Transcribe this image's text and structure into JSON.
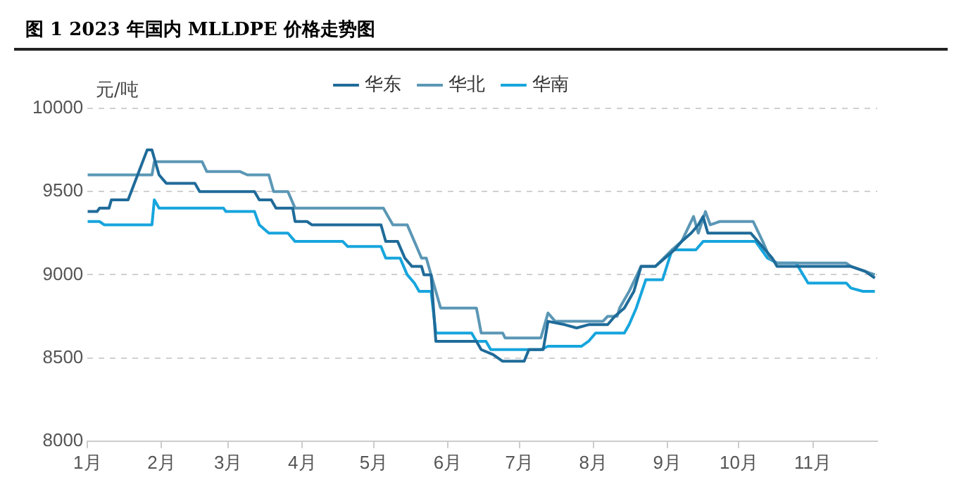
{
  "chart_data": {
    "type": "line",
    "title": "图 1 2023 年国内 MLLDPE 价格走势图",
    "ylabel": "元/吨",
    "xlim": [
      "2023-01-01",
      "2023-11-28"
    ],
    "xticks": [
      {
        "value": "2023-01-01",
        "label": "1月"
      },
      {
        "value": "2023-02-01",
        "label": "2月"
      },
      {
        "value": "2023-03-01",
        "label": "3月"
      },
      {
        "value": "2023-04-01",
        "label": "4月"
      },
      {
        "value": "2023-05-01",
        "label": "5月"
      },
      {
        "value": "2023-06-01",
        "label": "6月"
      },
      {
        "value": "2023-07-01",
        "label": "7月"
      },
      {
        "value": "2023-08-01",
        "label": "8月"
      },
      {
        "value": "2023-09-01",
        "label": "9月"
      },
      {
        "value": "2023-10-01",
        "label": "10月"
      },
      {
        "value": "2023-11-01",
        "label": "11月"
      }
    ],
    "ylim": [
      8000,
      10000
    ],
    "yticks": [
      8000,
      8500,
      9000,
      9500,
      10000
    ],
    "grid": "y",
    "legend": "top",
    "marker": "none",
    "line_style": "solid",
    "series": [
      {
        "name": "华东",
        "color": "#1f6b99",
        "x": [
          "2023-01-01",
          "2023-01-05",
          "2023-01-06",
          "2023-01-10",
          "2023-01-11",
          "2023-01-18",
          "2023-01-26",
          "2023-01-28",
          "2023-01-31",
          "2023-02-03",
          "2023-02-15",
          "2023-02-17",
          "2023-03-12",
          "2023-03-14",
          "2023-03-19",
          "2023-03-21",
          "2023-03-28",
          "2023-03-29",
          "2023-04-03",
          "2023-04-05",
          "2023-05-04",
          "2023-05-06",
          "2023-05-11",
          "2023-05-14",
          "2023-05-17",
          "2023-05-21",
          "2023-05-22",
          "2023-05-25",
          "2023-05-27",
          "2023-06-13",
          "2023-06-15",
          "2023-06-20",
          "2023-06-24",
          "2023-07-03",
          "2023-07-05",
          "2023-07-11",
          "2023-07-13",
          "2023-07-20",
          "2023-07-25",
          "2023-07-30",
          "2023-08-07",
          "2023-08-10",
          "2023-08-14",
          "2023-08-18",
          "2023-08-21",
          "2023-08-27",
          "2023-08-31",
          "2023-09-04",
          "2023-09-07",
          "2023-09-11",
          "2023-09-14",
          "2023-09-16",
          "2023-09-18",
          "2023-10-06",
          "2023-10-09",
          "2023-10-15",
          "2023-10-17",
          "2023-11-17",
          "2023-11-23",
          "2023-11-27"
        ],
        "values": [
          9380,
          9380,
          9400,
          9400,
          9450,
          9450,
          9750,
          9750,
          9600,
          9550,
          9550,
          9500,
          9500,
          9450,
          9450,
          9400,
          9400,
          9320,
          9320,
          9300,
          9300,
          9200,
          9200,
          9100,
          9050,
          9050,
          9000,
          9000,
          8600,
          8600,
          8550,
          8520,
          8480,
          8480,
          8550,
          8550,
          8720,
          8700,
          8680,
          8700,
          8700,
          8750,
          8800,
          8900,
          9050,
          9050,
          9100,
          9150,
          9200,
          9250,
          9300,
          9350,
          9250,
          9250,
          9200,
          9100,
          9050,
          9050,
          9020,
          8980
        ]
      },
      {
        "name": "华北",
        "color": "#5b97b5",
        "x": [
          "2023-01-01",
          "2023-01-28",
          "2023-01-29",
          "2023-02-18",
          "2023-02-20",
          "2023-03-06",
          "2023-03-09",
          "2023-03-18",
          "2023-03-20",
          "2023-03-26",
          "2023-03-29",
          "2023-05-05",
          "2023-05-07",
          "2023-05-09",
          "2023-05-15",
          "2023-05-18",
          "2023-05-21",
          "2023-05-23",
          "2023-05-25",
          "2023-05-29",
          "2023-06-13",
          "2023-06-15",
          "2023-06-24",
          "2023-06-25",
          "2023-07-10",
          "2023-07-13",
          "2023-07-16",
          "2023-08-05",
          "2023-08-07",
          "2023-08-11",
          "2023-08-12",
          "2023-08-16",
          "2023-08-21",
          "2023-08-27",
          "2023-09-03",
          "2023-09-07",
          "2023-09-12",
          "2023-09-14",
          "2023-09-17",
          "2023-09-19",
          "2023-09-23",
          "2023-10-07",
          "2023-10-11",
          "2023-10-14",
          "2023-10-17",
          "2023-11-15",
          "2023-11-17",
          "2023-11-27"
        ],
        "values": [
          9600,
          9600,
          9680,
          9680,
          9620,
          9620,
          9600,
          9600,
          9500,
          9500,
          9400,
          9400,
          9350,
          9300,
          9300,
          9200,
          9100,
          9100,
          9000,
          8800,
          8800,
          8650,
          8650,
          8620,
          8620,
          8770,
          8720,
          8720,
          8750,
          8750,
          8800,
          8900,
          9050,
          9050,
          9150,
          9200,
          9350,
          9250,
          9380,
          9300,
          9320,
          9320,
          9200,
          9100,
          9070,
          9070,
          9050,
          9000
        ]
      },
      {
        "name": "华南",
        "color": "#17a5dd",
        "x": [
          "2023-01-01",
          "2023-01-06",
          "2023-01-08",
          "2023-01-28",
          "2023-01-29",
          "2023-01-31",
          "2023-02-27",
          "2023-02-28",
          "2023-03-12",
          "2023-03-14",
          "2023-03-18",
          "2023-03-26",
          "2023-03-29",
          "2023-04-18",
          "2023-04-20",
          "2023-05-04",
          "2023-05-06",
          "2023-05-12",
          "2023-05-15",
          "2023-05-18",
          "2023-05-20",
          "2023-05-25",
          "2023-05-27",
          "2023-06-11",
          "2023-06-13",
          "2023-06-17",
          "2023-06-19",
          "2023-07-10",
          "2023-07-13",
          "2023-07-27",
          "2023-07-30",
          "2023-08-02",
          "2023-08-14",
          "2023-08-16",
          "2023-08-19",
          "2023-08-23",
          "2023-08-30",
          "2023-09-03",
          "2023-09-13",
          "2023-09-16",
          "2023-10-08",
          "2023-10-13",
          "2023-10-17",
          "2023-10-25",
          "2023-10-30",
          "2023-11-15",
          "2023-11-17",
          "2023-11-22",
          "2023-11-27"
        ],
        "values": [
          9320,
          9320,
          9300,
          9300,
          9450,
          9400,
          9400,
          9380,
          9380,
          9300,
          9250,
          9250,
          9200,
          9200,
          9170,
          9170,
          9100,
          9100,
          9000,
          8950,
          8900,
          8900,
          8650,
          8650,
          8600,
          8600,
          8550,
          8550,
          8570,
          8570,
          8600,
          8650,
          8650,
          8700,
          8800,
          8970,
          8970,
          9150,
          9150,
          9200,
          9200,
          9100,
          9070,
          9070,
          8950,
          8950,
          8920,
          8900,
          8900
        ]
      }
    ]
  }
}
